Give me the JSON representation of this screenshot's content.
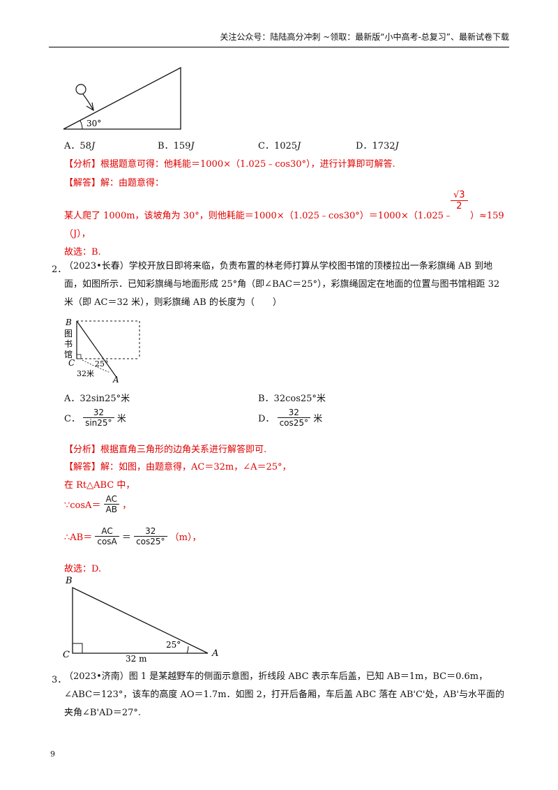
{
  "header": {
    "text": "关注公众号：陆陆高分冲刺 ~领取：最新版“小中高考-总复习”、最新试卷下载"
  },
  "q1": {
    "figure": {
      "angle_label": "30°"
    },
    "options": [
      {
        "letter": "A．",
        "value": "58",
        "unit": "J"
      },
      {
        "letter": "B．",
        "value": "159",
        "unit": "J"
      },
      {
        "letter": "C．",
        "value": "1025",
        "unit": "J"
      },
      {
        "letter": "D．",
        "value": "1732",
        "unit": "J"
      }
    ],
    "analysis_tag": "【分析】",
    "analysis_text": "根据题意可得：他耗能＝1000×（1.025﹣cos30°），进行计算即可解答.",
    "answer_tag": "【解答】",
    "answer_text": "解：由题意得：",
    "answer_line1_pre": "某人爬了 1000m，该坡角为 30°，则他耗能＝1000×（1.025﹣cos30°）＝1000×（1.025﹣",
    "sqrt_num": "√3",
    "sqrt_den": "2",
    "answer_line1_post": "）≈159",
    "answer_line2": "（J），",
    "choice": "故选：B."
  },
  "q2": {
    "number": "2．",
    "text": "（2023•长春）学校开放日即将来临，负责布置的林老师打算从学校图书馆的顶楼拉出一条彩旗绳 AB 到地面，如图所示．已知彩旗绳与地面形成 25°角（即∠BAC＝25°），彩旗绳固定在地面的位置与图书馆相距 32 米（即 AC＝32 米），则彩旗绳 AB 的长度为（　　）",
    "figure": {
      "B": "B",
      "C": "C",
      "A": "A",
      "building": [
        "图",
        "书",
        "馆"
      ],
      "angle": "25°",
      "dist": "32米"
    },
    "options": {
      "A": "A．32sin25°米",
      "B": "B．32cos25°米",
      "C_letter": "C．",
      "C_num": "32",
      "C_den": "sin25°",
      "C_unit": "米",
      "D_letter": "D．",
      "D_num": "32",
      "D_den": "cos25°",
      "D_unit": "米"
    },
    "analysis_tag": "【分析】",
    "analysis_text": "根据直角三角形的边角关系进行解答即可.",
    "answer_tag": "【解答】",
    "answer_text": "解：如图，由题意得，AC＝32m，∠A＝25°，",
    "line_rt": "在 Rt△ABC 中，",
    "cos_pre": "∵cosA＝",
    "cos_num": "AC",
    "cos_den": "AB",
    "cos_post": "，",
    "ab_pre": "∴AB＝",
    "ab_num1": "AC",
    "ab_den1": "cosA",
    "ab_eq": "＝",
    "ab_num2": "32",
    "ab_den2": "cos25°",
    "ab_post": "（m），",
    "choice": "故选：D.",
    "figure2": {
      "B": "B",
      "C": "C",
      "A": "A",
      "angle": "25°",
      "dist": "32 m"
    }
  },
  "q3": {
    "number": "3．",
    "text": "（2023•济南）图 1 是某越野车的侧面示意图，折线段 ABC 表示车后盖，已知 AB＝1m，BC＝0.6m，∠ABC＝123°，该车的高度 AO＝1.7m．如图 2，打开后备厢，车后盖 ABC 落在 AB'C'处，AB'与水平面的夹角∠B'AD＝27°."
  },
  "page_number": "9"
}
